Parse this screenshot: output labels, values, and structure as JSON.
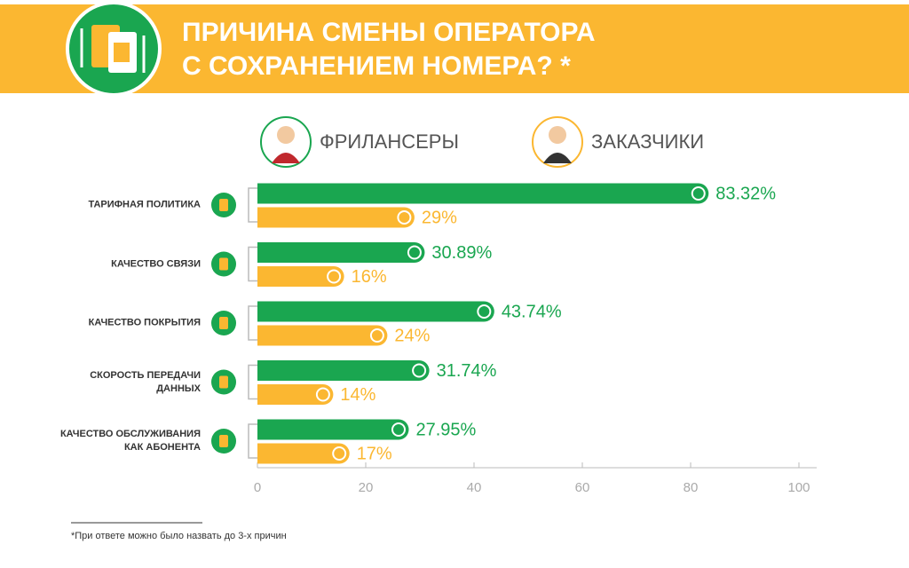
{
  "chart_data": {
    "type": "bar",
    "orientation": "horizontal",
    "title": [
      "ПРИЧИНА СМЕНЫ ОПЕРАТОРА",
      "С СОХРАНЕНИЕМ НОМЕРА? *"
    ],
    "categories": [
      "ТАРИФНАЯ ПОЛИТИКА",
      "КАЧЕСТВО СВЯЗИ",
      "КАЧЕСТВО ПОКРЫТИЯ",
      "СКОРОСТЬ ПЕРЕДАЧИ\nДАННЫХ",
      "КАЧЕСТВО ОБСЛУЖИВАНИЯ\nКАК АБОНЕНТА"
    ],
    "series": [
      {
        "name": "ФРИЛАНСЕРЫ",
        "color": "#1aa650",
        "values": [
          83.32,
          30.89,
          43.74,
          31.74,
          27.95
        ],
        "value_labels": [
          "83.32%",
          "30.89%",
          "43.74%",
          "31.74%",
          "27.95%"
        ]
      },
      {
        "name": "ЗАКАЗЧИКИ",
        "color": "#fbb731",
        "values": [
          29,
          16,
          24,
          14,
          17
        ],
        "value_labels": [
          "29%",
          "16%",
          "24%",
          "14%",
          "17%"
        ]
      }
    ],
    "xlim": [
      0,
      100
    ],
    "xticks": [
      0,
      20,
      40,
      60,
      80,
      100
    ]
  },
  "footnote": "*При ответе можно было назвать до 3-х причин"
}
